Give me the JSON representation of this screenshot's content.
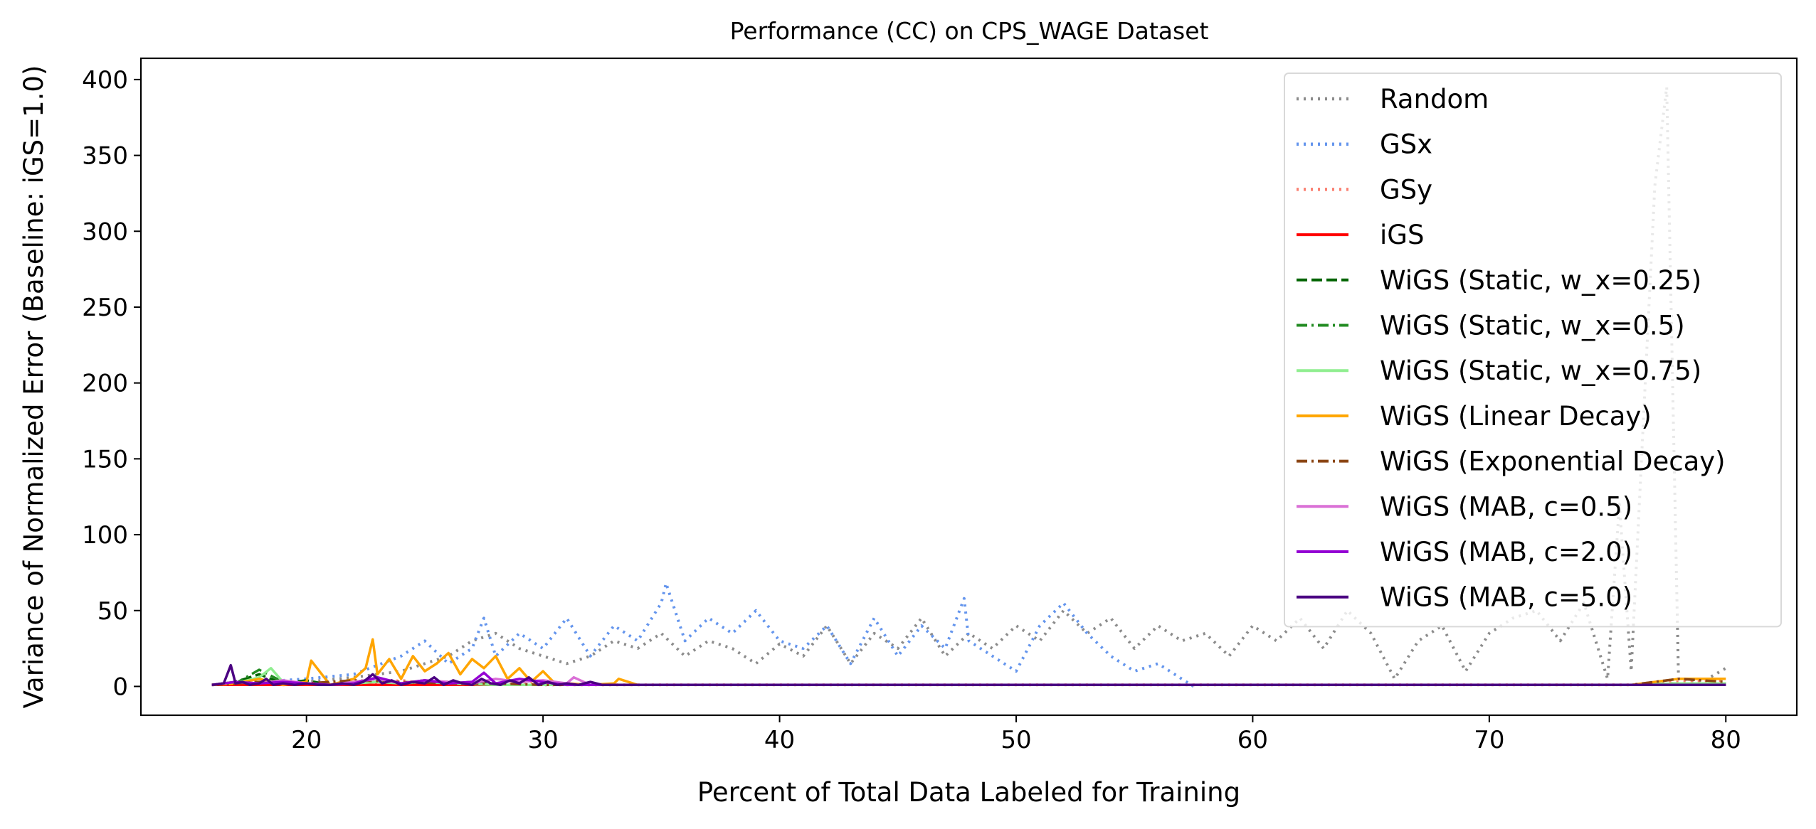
{
  "chart_data": {
    "type": "line",
    "title": "Performance (CC) on CPS_WAGE Dataset",
    "xlabel": "Percent of Total Data Labeled for Training",
    "ylabel": "Variance of Normalized Error (Baseline: iGS=1.0)",
    "xlim": [
      13,
      83
    ],
    "ylim": [
      -19,
      414
    ],
    "xticks": [
      20,
      30,
      40,
      50,
      60,
      70,
      80
    ],
    "yticks": [
      0,
      50,
      100,
      150,
      200,
      250,
      300,
      350,
      400
    ],
    "grid": false,
    "legend_position": "top-right",
    "series": [
      {
        "name": "Random",
        "color": "#808080",
        "style": "dotted",
        "alpha": 0.9,
        "x": [
          16,
          18,
          20,
          22,
          24,
          25,
          26,
          27,
          28,
          29,
          30,
          31,
          32,
          33,
          34,
          35,
          36,
          37,
          38,
          39,
          40,
          41,
          42,
          43,
          44,
          45,
          46,
          47,
          48,
          49,
          50,
          51,
          52,
          53,
          54,
          55,
          56,
          57,
          58,
          59,
          60,
          61,
          62,
          63,
          64,
          65,
          66,
          67,
          68,
          69,
          70,
          71,
          72,
          73,
          74,
          75,
          75.5,
          76,
          77,
          77.5,
          78,
          79,
          80
        ],
        "y": [
          1,
          4,
          3,
          6,
          10,
          15,
          20,
          30,
          35,
          25,
          20,
          15,
          20,
          30,
          25,
          35,
          20,
          30,
          25,
          15,
          28,
          20,
          40,
          15,
          35,
          25,
          45,
          20,
          35,
          25,
          40,
          30,
          50,
          35,
          45,
          25,
          40,
          30,
          35,
          20,
          40,
          30,
          45,
          25,
          50,
          35,
          5,
          30,
          40,
          10,
          35,
          45,
          50,
          30,
          55,
          5,
          120,
          10,
          330,
          395,
          5,
          3,
          12
        ]
      },
      {
        "name": "GSx",
        "color": "#6495ed",
        "style": "dotted",
        "alpha": 1,
        "x": [
          16,
          18,
          20,
          22,
          24,
          25,
          26,
          27,
          27.5,
          28,
          29,
          30,
          31,
          32,
          33,
          34,
          35,
          35.2,
          36,
          37,
          38,
          39,
          40,
          41,
          42,
          43,
          44,
          45,
          46,
          47,
          47.8,
          48,
          49,
          50,
          51,
          52,
          53,
          54,
          55,
          56,
          57,
          57.5
        ],
        "y": [
          1,
          3,
          5,
          8,
          20,
          30,
          15,
          25,
          45,
          20,
          35,
          25,
          45,
          20,
          40,
          30,
          55,
          68,
          30,
          45,
          35,
          50,
          30,
          25,
          40,
          15,
          45,
          20,
          40,
          25,
          58,
          30,
          20,
          10,
          40,
          55,
          35,
          20,
          10,
          15,
          5,
          0
        ]
      },
      {
        "name": "GSy",
        "color": "#fa8072",
        "style": "dotted",
        "alpha": 1,
        "x": [
          16,
          17,
          18,
          19,
          20,
          21,
          22,
          23,
          24,
          25,
          26,
          27,
          28,
          30,
          35,
          40,
          50,
          60,
          70,
          76,
          78,
          80
        ],
        "y": [
          1,
          2,
          3,
          1,
          2,
          1,
          3,
          2,
          4,
          2,
          3,
          1,
          2,
          1,
          1,
          1,
          1,
          1,
          1,
          1,
          3,
          4
        ]
      },
      {
        "name": "iGS",
        "color": "#ff0000",
        "style": "solid",
        "alpha": 1,
        "x": [
          16,
          80
        ],
        "y": [
          1,
          1
        ]
      },
      {
        "name": "WiGS (Static, w_x=0.25)",
        "color": "#006400",
        "style": "dashed",
        "alpha": 1,
        "x": [
          16,
          17,
          18,
          19,
          20,
          21,
          22,
          23,
          24,
          25,
          26,
          27,
          28,
          30,
          40,
          50,
          60,
          70,
          76,
          78,
          80
        ],
        "y": [
          1,
          3,
          8,
          2,
          4,
          1,
          3,
          5,
          2,
          4,
          2,
          3,
          1,
          1,
          1,
          1,
          1,
          1,
          1,
          2,
          2
        ]
      },
      {
        "name": "WiGS (Static, w_x=0.5)",
        "color": "#228b22",
        "style": "dashdot",
        "alpha": 1,
        "x": [
          16,
          17,
          18,
          19,
          20,
          21,
          22,
          23,
          24,
          25,
          26,
          28,
          30,
          40,
          50,
          60,
          70,
          76,
          78,
          80
        ],
        "y": [
          1,
          2,
          11,
          3,
          2,
          1,
          2,
          4,
          2,
          3,
          2,
          1,
          1,
          1,
          1,
          1,
          1,
          1,
          2,
          2
        ]
      },
      {
        "name": "WiGS (Static, w_x=0.75)",
        "color": "#90ee90",
        "style": "solid",
        "alpha": 1,
        "x": [
          16,
          17,
          18,
          18.5,
          19,
          20,
          21,
          22,
          23,
          24,
          25,
          26,
          28,
          30,
          40,
          50,
          60,
          70,
          76,
          78,
          80
        ],
        "y": [
          1,
          2,
          6,
          12,
          3,
          2,
          1,
          2,
          3,
          2,
          3,
          2,
          1,
          1,
          1,
          1,
          1,
          1,
          1,
          2,
          2
        ]
      },
      {
        "name": "WiGS (Linear Decay)",
        "color": "#ffa500",
        "style": "solid",
        "alpha": 1,
        "x": [
          16,
          17,
          18,
          19,
          20,
          20.2,
          21,
          22,
          22.5,
          22.8,
          23,
          23.5,
          24,
          24.5,
          25,
          25.5,
          26,
          26.5,
          27,
          27.5,
          28,
          28.5,
          29,
          29.5,
          30,
          30.5,
          31,
          32,
          33,
          33.2,
          34,
          40,
          50,
          60,
          70,
          76,
          78,
          80
        ],
        "y": [
          1,
          2,
          5,
          1,
          3,
          17,
          1,
          5,
          12,
          31,
          8,
          18,
          5,
          20,
          10,
          15,
          22,
          8,
          18,
          12,
          20,
          5,
          12,
          3,
          10,
          2,
          2,
          1,
          2,
          5,
          1,
          1,
          1,
          1,
          1,
          1,
          5,
          5
        ]
      },
      {
        "name": "WiGS (Exponential Decay)",
        "color": "#8b4513",
        "style": "dashdot",
        "alpha": 1,
        "x": [
          16,
          18,
          20,
          22,
          24,
          26,
          28,
          30,
          40,
          50,
          60,
          70,
          76,
          77,
          78,
          79,
          80
        ],
        "y": [
          1,
          3,
          2,
          4,
          3,
          2,
          2,
          1,
          1,
          1,
          1,
          1,
          1,
          3,
          5,
          4,
          3
        ]
      },
      {
        "name": "WiGS (MAB, c=0.5)",
        "color": "#da70d6",
        "style": "solid",
        "alpha": 1,
        "x": [
          16,
          17,
          18,
          19,
          20,
          21,
          22,
          23,
          24,
          25,
          26,
          27,
          28,
          29,
          30,
          31,
          31.3,
          32,
          33,
          40,
          50,
          60,
          70,
          80
        ],
        "y": [
          1,
          3,
          2,
          4,
          2,
          1,
          3,
          5,
          2,
          4,
          3,
          2,
          5,
          3,
          4,
          2,
          6,
          1,
          1,
          1,
          1,
          1,
          1,
          1
        ]
      },
      {
        "name": "WiGS (MAB, c=2.0)",
        "color": "#9400d3",
        "style": "solid",
        "alpha": 1,
        "x": [
          16,
          17,
          18,
          19,
          20,
          21,
          22,
          23,
          24,
          25,
          26,
          27,
          27.5,
          28,
          29,
          30,
          31,
          32,
          40,
          50,
          60,
          70,
          80
        ],
        "y": [
          1,
          3,
          2,
          3,
          2,
          1,
          2,
          6,
          2,
          4,
          2,
          3,
          9,
          2,
          5,
          3,
          1,
          1,
          1,
          1,
          1,
          1,
          1
        ]
      },
      {
        "name": "WiGS (MAB, c=5.0)",
        "color": "#4b0082",
        "style": "solid",
        "alpha": 1,
        "x": [
          16,
          16.5,
          16.8,
          17,
          17.3,
          17.6,
          18,
          18.3,
          18.6,
          19,
          19.5,
          20,
          20.5,
          21,
          21.5,
          22,
          22.4,
          22.8,
          23.2,
          23.6,
          24,
          24.5,
          25,
          25.4,
          25.8,
          26.2,
          26.6,
          27,
          27.4,
          27.8,
          28.2,
          28.6,
          29,
          29.4,
          29.8,
          30.2,
          30.6,
          31,
          31.5,
          32,
          32.5,
          33,
          40,
          50,
          60,
          70,
          80
        ],
        "y": [
          1,
          2,
          14,
          2,
          3,
          1,
          2,
          5,
          1,
          2,
          1,
          2,
          1,
          1,
          2,
          1,
          3,
          8,
          2,
          4,
          1,
          3,
          2,
          6,
          1,
          4,
          2,
          1,
          5,
          2,
          1,
          4,
          2,
          6,
          1,
          3,
          1,
          2,
          1,
          3,
          1,
          1,
          1,
          1,
          1,
          1,
          1
        ]
      }
    ]
  }
}
